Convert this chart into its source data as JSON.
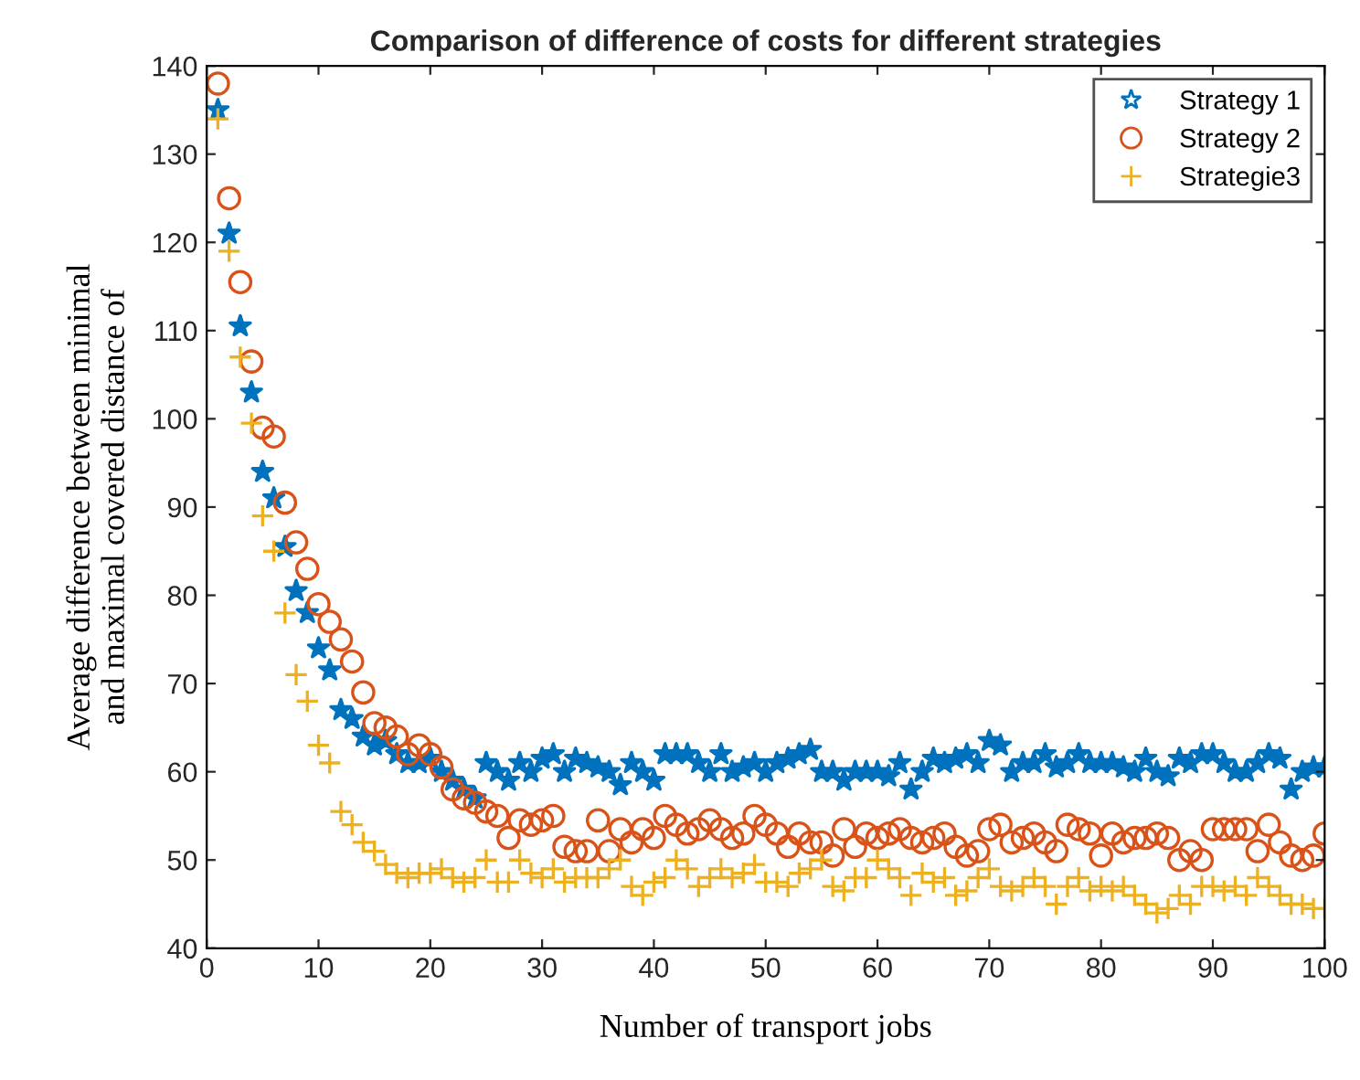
{
  "chart_data": {
    "type": "scatter",
    "title": "Comparison of difference of costs for different strategies",
    "xlabel": "Number of transport jobs",
    "ylabel": "Average difference between minimal\nand maximal covered distance of",
    "x": [
      1,
      2,
      3,
      4,
      5,
      6,
      7,
      8,
      9,
      10,
      11,
      12,
      13,
      14,
      15,
      16,
      17,
      18,
      19,
      20,
      21,
      22,
      23,
      24,
      25,
      26,
      27,
      28,
      29,
      30,
      31,
      32,
      33,
      34,
      35,
      36,
      37,
      38,
      39,
      40,
      41,
      42,
      43,
      44,
      45,
      46,
      47,
      48,
      49,
      50,
      51,
      52,
      53,
      54,
      55,
      56,
      57,
      58,
      59,
      60,
      61,
      62,
      63,
      64,
      65,
      66,
      67,
      68,
      69,
      70,
      71,
      72,
      73,
      74,
      75,
      76,
      77,
      78,
      79,
      80,
      81,
      82,
      83,
      84,
      85,
      86,
      87,
      88,
      89,
      90,
      91,
      92,
      93,
      94,
      95,
      96,
      97,
      98,
      99,
      100
    ],
    "xlim": [
      0,
      100
    ],
    "xticks": [
      0,
      10,
      20,
      30,
      40,
      50,
      60,
      70,
      80,
      90,
      100
    ],
    "ylim": [
      40,
      140
    ],
    "yticks": [
      40,
      50,
      60,
      70,
      80,
      90,
      100,
      110,
      120,
      130,
      140
    ],
    "grid": false,
    "legend": "top right",
    "series": [
      {
        "name": "Strategy 1",
        "color": "#0072bd",
        "marker": "star",
        "values": [
          135,
          121,
          110.5,
          103,
          94,
          91,
          85.5,
          80.5,
          78,
          74,
          71.5,
          67,
          66,
          64,
          63,
          63.5,
          62,
          61,
          61,
          61.5,
          60,
          59,
          58,
          57,
          61,
          60,
          59,
          61,
          60,
          61.5,
          62,
          60,
          61.5,
          61,
          60.5,
          60,
          58.5,
          61,
          60,
          59,
          62,
          62,
          62,
          61,
          60,
          62,
          60,
          60.5,
          61,
          60,
          61,
          61.5,
          62,
          62.5,
          60,
          60,
          59,
          60,
          60,
          60,
          59.5,
          61,
          58,
          60,
          61.5,
          61,
          61.5,
          62,
          61,
          63.5,
          63,
          60,
          61,
          61,
          62,
          60.5,
          61,
          62,
          61,
          61,
          61,
          60.5,
          60,
          61.5,
          60,
          59.5,
          61.5,
          61,
          62,
          62,
          61,
          60,
          60,
          61,
          62,
          61.5,
          58,
          60,
          60.5,
          60.5
        ]
      },
      {
        "name": "Strategy 2",
        "color": "#d95319",
        "marker": "circle",
        "values": [
          138,
          125,
          115.5,
          106.5,
          99,
          98,
          90.5,
          86,
          83,
          79,
          77,
          75,
          72.5,
          69,
          65.5,
          65,
          64,
          62,
          63,
          62,
          60.5,
          58,
          57,
          56.5,
          55.5,
          55,
          52.5,
          54.5,
          54,
          54.5,
          55,
          51.5,
          51,
          51,
          54.5,
          51,
          53.5,
          52,
          53.5,
          52.5,
          55,
          54,
          53,
          53.5,
          54.5,
          53.5,
          52.5,
          53,
          55,
          54,
          53,
          51.5,
          53,
          52,
          52,
          50.5,
          53.5,
          51.5,
          53,
          52.5,
          53,
          53.5,
          52.5,
          52,
          52.5,
          53,
          51.5,
          50.5,
          51,
          53.5,
          54,
          52,
          52.5,
          53,
          52,
          51,
          54,
          53.5,
          53,
          50.5,
          53,
          52,
          52.5,
          52.5,
          53,
          52.5,
          50,
          51,
          50,
          53.5,
          53.5,
          53.5,
          53.5,
          51,
          54,
          52,
          50.5,
          50,
          50.5,
          53
        ]
      },
      {
        "name": "Strategie3",
        "color": "#edb120",
        "marker": "cross",
        "values": [
          134,
          119,
          107,
          99.5,
          89,
          85,
          78,
          71,
          68,
          63,
          61,
          55.5,
          54,
          52,
          51,
          49.5,
          48.5,
          48,
          48.5,
          48.5,
          49,
          48,
          47.5,
          48,
          50,
          47.5,
          47.5,
          50,
          48.5,
          48,
          49,
          47.5,
          48,
          48,
          48,
          49,
          50,
          47,
          46,
          47.5,
          48,
          50,
          49,
          47,
          48,
          49,
          48,
          48.5,
          49.5,
          47.5,
          47.5,
          47,
          48.5,
          49,
          50,
          47,
          46.5,
          48,
          48,
          50,
          49,
          48,
          46,
          48.5,
          47.5,
          48,
          46,
          46.5,
          48,
          49,
          47,
          46.5,
          47,
          48,
          47,
          45,
          47,
          48,
          46.5,
          47,
          46.5,
          47,
          46,
          45,
          44,
          44.5,
          46,
          45,
          47,
          47,
          46.5,
          47,
          46,
          48,
          47,
          46,
          45,
          45,
          44.5,
          44.5
        ]
      }
    ]
  }
}
